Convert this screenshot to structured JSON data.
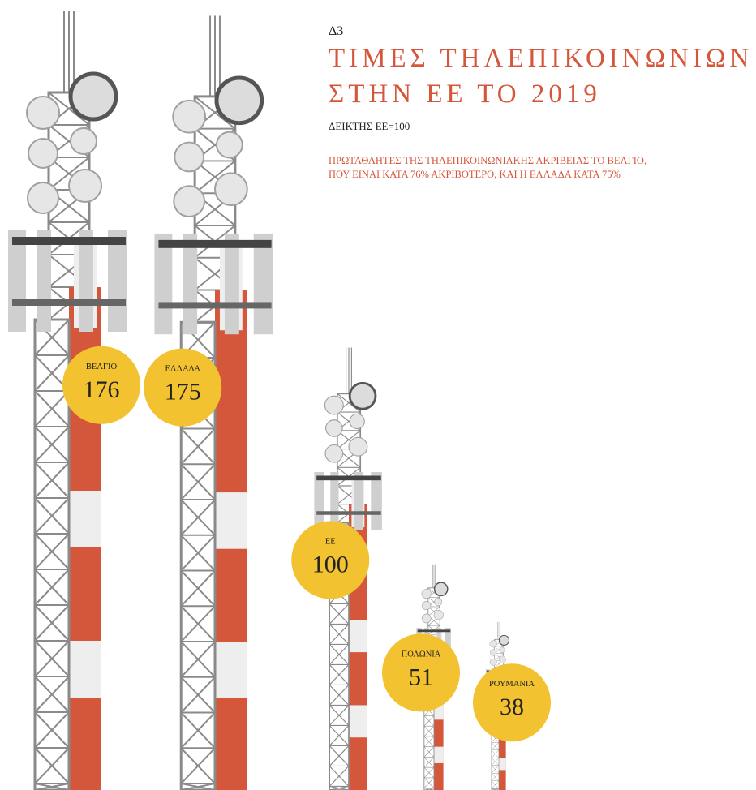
{
  "chart_data": {
    "type": "bar",
    "label": "Δ3",
    "title": "ΤΙΜΕΣ ΤΗΛΕΠΙΚΟΙΝΩΝΙΩΝ ΣΤΗΝ ΕΕ ΤΟ 2019",
    "subtitle": "ΔΕΙΚΤΗΣ ΕΕ=100",
    "annotation": "ΠΡΩΤΑΘΛΗΤΕΣ ΤΗΣ ΤΗΛΕΠΙΚΟΙΝΩΝΙΑΚΗΣ ΑΚΡΙΒΕΙΑΣ ΤΟ ΒΕΛΓΙΟ, ΠΟΥ ΕΙΝΑΙ ΚΑΤΑ 76% ΑΚΡΙΒΟΤΕΡΟ, ΚΑΙ Η ΕΛΛΑΔΑ ΚΑΤΑ 75%",
    "categories": [
      "ΒΕΛΓΙΟ",
      "ΕΛΛΑΔΑ",
      "ΕΕ",
      "ΠΟΛΩΝΙΑ",
      "ΡΟΥΜΑΝΙΑ"
    ],
    "values": [
      176,
      175,
      100,
      51,
      38
    ],
    "color": "#d5573b",
    "label_color": "#f2c230"
  }
}
